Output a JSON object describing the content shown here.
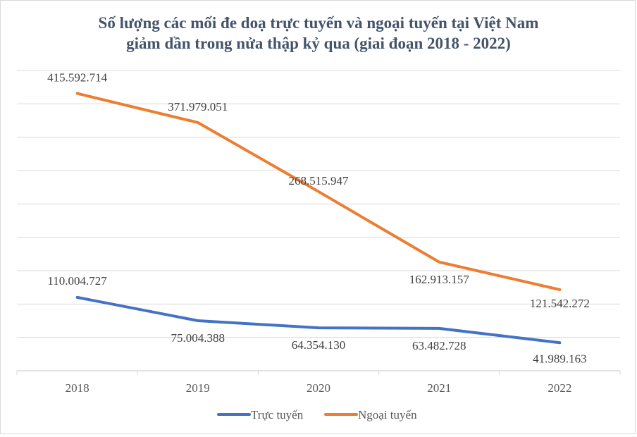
{
  "chart_data": {
    "type": "line",
    "title_line1": "Số lượng các mối đe doạ trực tuyến và ngoại tuyến tại Việt Nam",
    "title_line2": "giảm dần trong nửa thập kỷ qua (giai đoạn 2018 - 2022)",
    "categories": [
      "2018",
      "2019",
      "2020",
      "2021",
      "2022"
    ],
    "ylim": [
      0,
      450000000
    ],
    "ygrid_step": 50000000,
    "grid": true,
    "y_tick_labels_shown": false,
    "legend_position": "bottom",
    "series": [
      {
        "name": "Trực tuyến",
        "color": "#4472c4",
        "values": [
          110004727,
          75004388,
          64354130,
          63482728,
          41989163
        ],
        "labels": [
          "110.004.727",
          "75.004.388",
          "64.354.130",
          "63.482.728",
          "41.989.163"
        ]
      },
      {
        "name": "Ngoại tuyến",
        "color": "#ed7d31",
        "values": [
          415592714,
          371979051,
          268515947,
          162913157,
          121542272
        ],
        "labels": [
          "415.592.714",
          "371.979.051",
          "268.515.947",
          "162.913.157",
          "121.542.272"
        ]
      }
    ]
  }
}
